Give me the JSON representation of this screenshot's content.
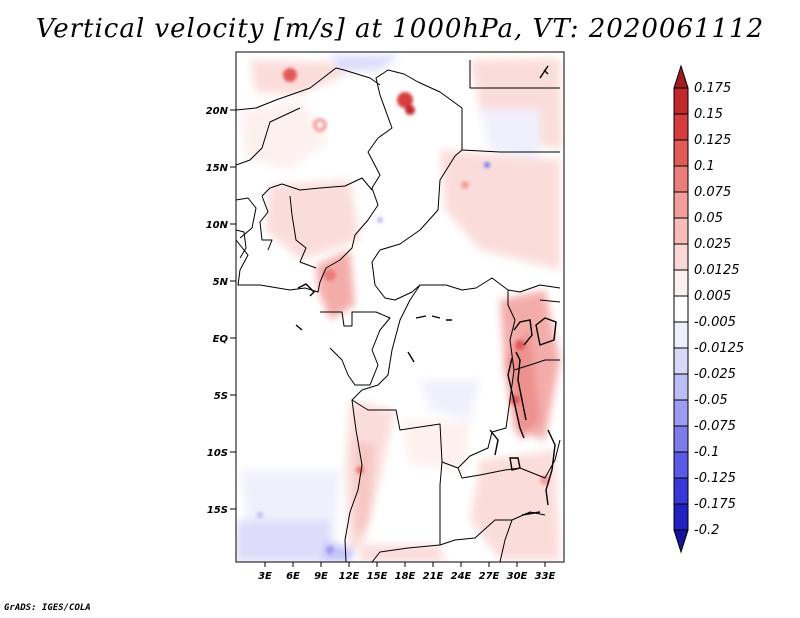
{
  "title": "Vertical velocity [m/s] at 1000hPa, VT: 2020061112",
  "credit": "GrADS: IGES/COLA",
  "lat_labels": [
    "20N",
    "15N",
    "10N",
    "5N",
    "EQ",
    "5S",
    "10S",
    "15S"
  ],
  "lon_labels": [
    "3E",
    "6E",
    "9E",
    "12E",
    "15E",
    "18E",
    "21E",
    "24E",
    "27E",
    "30E",
    "33E"
  ],
  "colorbar": {
    "labels": [
      "0.175",
      "0.15",
      "0.125",
      "0.1",
      "0.075",
      "0.05",
      "0.025",
      "0.0125",
      "0.005",
      "-0.005",
      "-0.0125",
      "-0.025",
      "-0.05",
      "-0.075",
      "-0.1",
      "-0.125",
      "-0.175",
      "-0.2"
    ],
    "colors": [
      "#a01c22",
      "#c0282c",
      "#d63c3c",
      "#e05a58",
      "#ea7e7a",
      "#f29f9b",
      "#f6bdb9",
      "#fad8d5",
      "#fdefee",
      "#ffffff",
      "#eeeefd",
      "#d8d8fb",
      "#bcbcf7",
      "#9c9cf2",
      "#7c7ced",
      "#5a5ae6",
      "#3838d8",
      "#2222c0",
      "#14149a"
    ]
  }
}
